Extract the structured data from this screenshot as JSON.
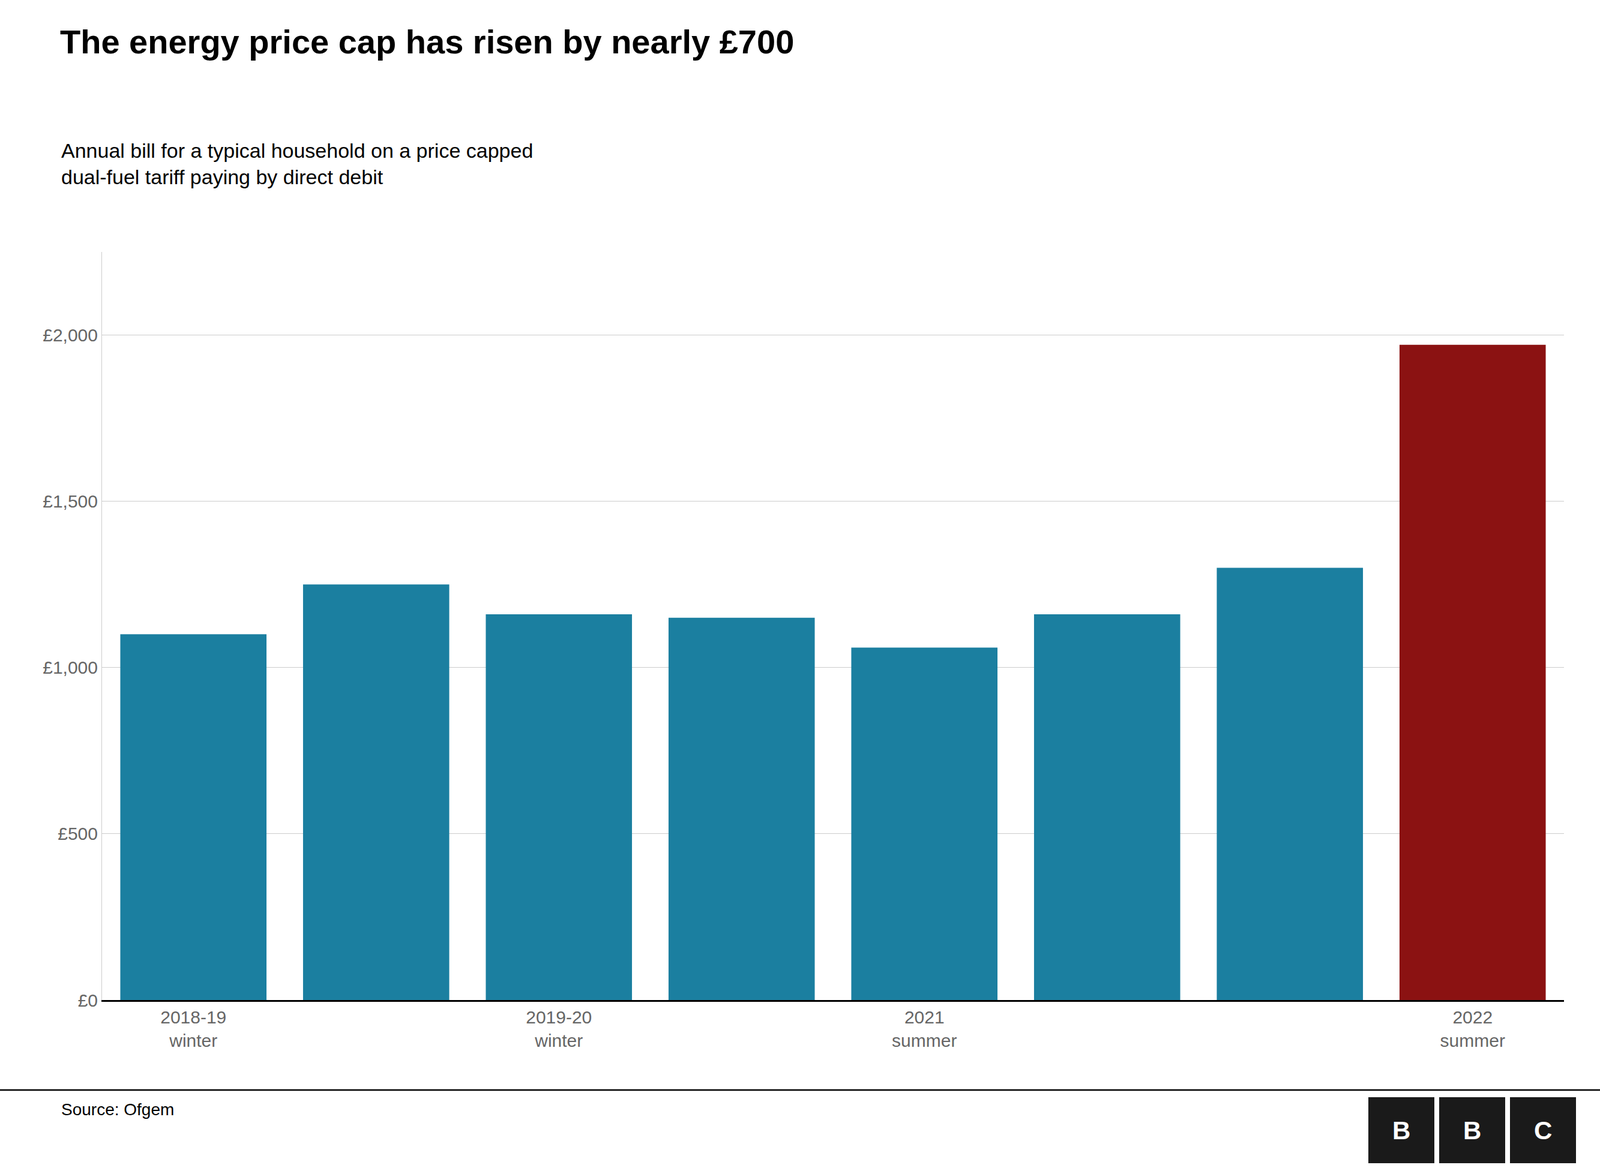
{
  "chart_data": {
    "type": "bar",
    "title": "The energy price cap has risen by nearly £700",
    "subtitle": "Annual bill for a typical household on a price capped\ndual-fuel tariff paying by direct debit",
    "annotations": [
      "Source: Ofgem",
      "B",
      "B",
      "C"
    ],
    "categories": [
      "2018-19\nwinter",
      null,
      "2019-20\nwinter",
      null,
      "2021\nsummer",
      null,
      null,
      "2022\nsummer"
    ],
    "values": [
      1100,
      1250,
      1160,
      1150,
      1060,
      1160,
      1300,
      1971
    ],
    "colors": [
      "#1b7fa0",
      "#1b7fa0",
      "#1b7fa0",
      "#1b7fa0",
      "#1b7fa0",
      "#1b7fa0",
      "#1b7fa0",
      "#8b1212"
    ],
    "ylim": [
      0,
      2250
    ],
    "yticks": [
      {
        "value": 0,
        "label": "£0"
      },
      {
        "value": 500,
        "label": "£500"
      },
      {
        "value": 1000,
        "label": "£1,000"
      },
      {
        "value": 1500,
        "label": "£1,500"
      },
      {
        "value": 2000,
        "label": "£2,000"
      }
    ],
    "grid": true
  }
}
